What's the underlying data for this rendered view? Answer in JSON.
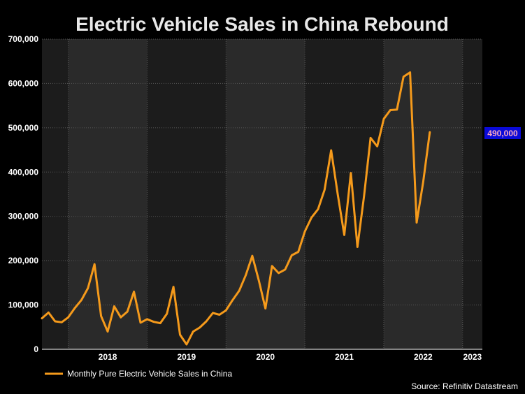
{
  "colors": {
    "background": "#000000",
    "plot_band_dark": "#1c1c1c",
    "plot_band_light": "#2a2a2a",
    "grid": "#555555",
    "line": "#f59a1b",
    "callout_bg": "#0a0ad8",
    "callout_text": "#f9a8c0"
  },
  "chart_data": {
    "type": "line",
    "title": "Electric Vehicle Sales in China Rebound",
    "xlabel": "",
    "ylabel": "",
    "ylim": [
      0,
      700000
    ],
    "y_ticks": [
      0,
      100000,
      200000,
      300000,
      400000,
      500000,
      600000,
      700000
    ],
    "y_tick_labels": [
      "0",
      "100,000",
      "200,000",
      "300,000",
      "400,000",
      "500,000",
      "600,000",
      "700,000"
    ],
    "x_tick_labels": [
      "2018",
      "2019",
      "2020",
      "2021",
      "2022",
      "2023"
    ],
    "grid": true,
    "legend_position": "bottom-left",
    "callout_label": "490,000",
    "source": "Source: Refinitiv Datastream",
    "series": [
      {
        "name": "Monthly Pure Electric Vehicle Sales in China",
        "x": [
          "2017-09",
          "2017-10",
          "2017-11",
          "2017-12",
          "2018-01",
          "2018-02",
          "2018-03",
          "2018-04",
          "2018-05",
          "2018-06",
          "2018-07",
          "2018-08",
          "2018-09",
          "2018-10",
          "2018-11",
          "2018-12",
          "2019-01",
          "2019-02",
          "2019-03",
          "2019-04",
          "2019-05",
          "2019-06",
          "2019-07",
          "2019-08",
          "2019-09",
          "2019-10",
          "2019-11",
          "2019-12",
          "2020-01",
          "2020-02",
          "2020-03",
          "2020-04",
          "2020-05",
          "2020-06",
          "2020-07",
          "2020-08",
          "2020-09",
          "2020-10",
          "2020-11",
          "2020-12",
          "2021-01",
          "2021-02",
          "2021-03",
          "2021-04",
          "2021-05",
          "2021-06",
          "2021-07",
          "2021-08",
          "2021-09",
          "2021-10",
          "2021-11",
          "2021-12",
          "2022-01",
          "2022-02",
          "2022-03",
          "2022-04",
          "2022-05",
          "2022-06",
          "2022-07",
          "2022-08",
          "2022-09",
          "2022-10",
          "2022-11",
          "2022-12",
          "2023-01",
          "2023-02",
          "2023-03"
        ],
        "values": [
          70000,
          83000,
          63000,
          61000,
          72000,
          93000,
          111000,
          138000,
          192000,
          75000,
          40000,
          97000,
          72000,
          85000,
          130000,
          60000,
          68000,
          62000,
          59000,
          80000,
          141000,
          33000,
          11000,
          40000,
          49000,
          63000,
          82000,
          78000,
          88000,
          111000,
          132000,
          167000,
          211000,
          155000,
          92000,
          188000,
          172000,
          180000,
          212000,
          220000,
          266000,
          297000,
          316000,
          360000,
          449000,
          350000,
          258000,
          398000,
          231000,
          345000,
          477000,
          458000,
          520000,
          540000,
          541000,
          615000,
          625000,
          286000,
          378000,
          490000,
          null,
          null,
          null,
          null,
          null,
          null,
          null
        ]
      }
    ]
  }
}
